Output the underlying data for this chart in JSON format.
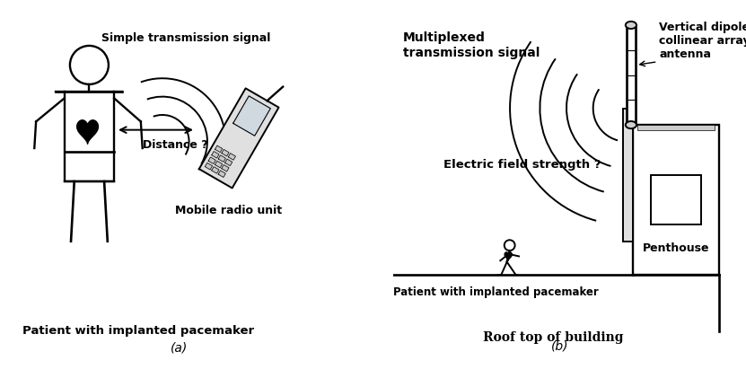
{
  "bg_color": "#ffffff",
  "line_color": "#000000",
  "fig_width": 8.31,
  "fig_height": 4.21,
  "panel_a": {
    "label": "(a)",
    "caption": "Patient with implanted pacemaker",
    "label_simple": "Simple transmission signal",
    "label_distance": "Distance ?",
    "label_mobile": "Mobile radio unit"
  },
  "panel_b": {
    "label": "(b)",
    "caption": "Roof top of building",
    "label_multiplexed": "Multiplexed\ntransmission signal",
    "label_electric": "Electric field strength ?",
    "label_patient": "Patient with implanted pacemaker",
    "label_antenna": "Vertical dipole\ncollinear array\nantenna",
    "label_penthouse": "Penthouse"
  }
}
